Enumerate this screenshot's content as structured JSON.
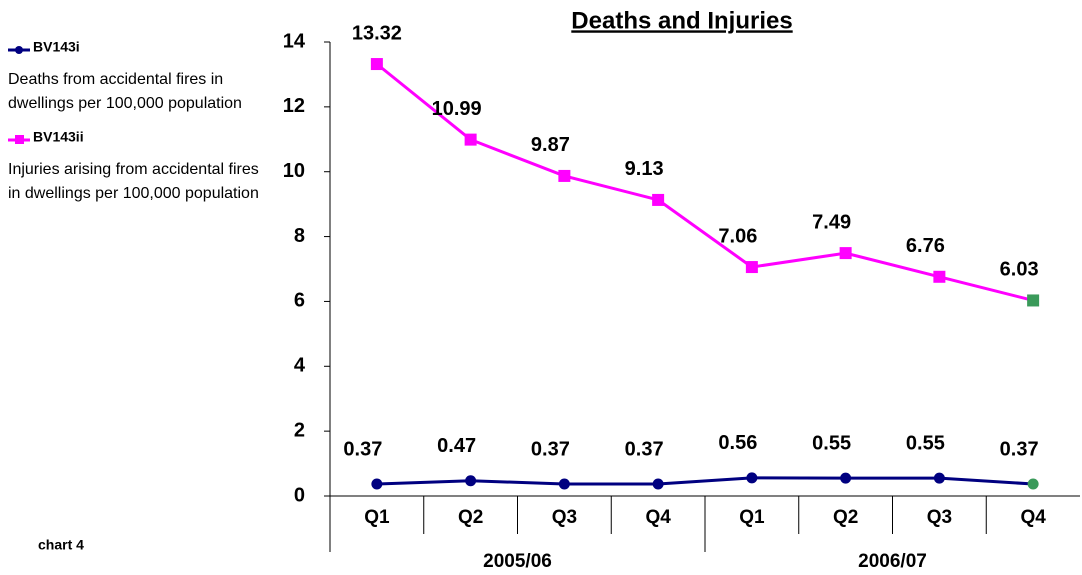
{
  "chart_data": {
    "type": "line",
    "title": "Deaths and Injuries",
    "categories": [
      "Q1",
      "Q2",
      "Q3",
      "Q4",
      "Q1",
      "Q2",
      "Q3",
      "Q4"
    ],
    "groups": [
      "2005/06",
      "2006/07"
    ],
    "series": [
      {
        "name": "BV143i",
        "description": "Deaths from accidental fires in dwellings per 100,000 population",
        "color": "#000080",
        "marker": "circle",
        "last_point_color": "#3a9a5a",
        "values": [
          0.37,
          0.47,
          0.37,
          0.37,
          0.56,
          0.55,
          0.55,
          0.37
        ]
      },
      {
        "name": "BV143ii",
        "description": "Injuries arising from accidental fires in dwellings per 100,000 population",
        "color": "#ff00ff",
        "marker": "square",
        "last_point_color": "#3a9a5a",
        "values": [
          13.32,
          10.99,
          9.87,
          9.13,
          7.06,
          7.49,
          6.76,
          6.03
        ]
      }
    ],
    "ylim": [
      0,
      14
    ],
    "yticks": [
      0,
      2,
      4,
      6,
      8,
      10,
      12,
      14
    ],
    "grid": false,
    "annotation": "chart 4"
  }
}
